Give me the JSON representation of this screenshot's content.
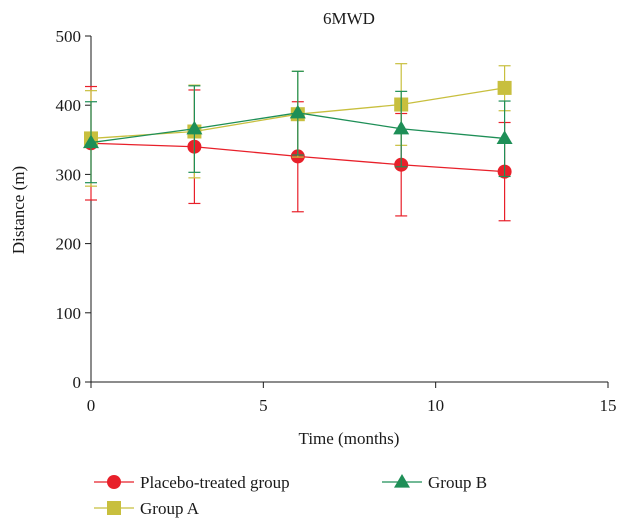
{
  "chart_data": {
    "type": "line",
    "title": "6MWD",
    "xlabel": "Time (months)",
    "ylabel": "Distance (m)",
    "xlim": [
      0,
      15
    ],
    "ylim": [
      0,
      500
    ],
    "xticks": [
      0,
      5,
      10,
      15
    ],
    "yticks": [
      0,
      100,
      200,
      300,
      400,
      500
    ],
    "grid": false,
    "legend_position": "bottom",
    "series": [
      {
        "name": "Placebo-treated group",
        "color": "#e8202a",
        "marker": "circle",
        "x": [
          0,
          3,
          6,
          9,
          12
        ],
        "y": [
          345,
          340,
          326,
          314,
          304
        ],
        "error_low": [
          263,
          258,
          246,
          240,
          233
        ],
        "error_high": [
          427,
          422,
          405,
          388,
          375
        ]
      },
      {
        "name": "Group A",
        "color": "#c8bf3e",
        "marker": "square",
        "x": [
          0,
          3,
          6,
          9,
          12
        ],
        "y": [
          352,
          362,
          387,
          401,
          425
        ],
        "error_low": [
          283,
          295,
          325,
          342,
          392
        ],
        "error_high": [
          421,
          429,
          449,
          460,
          457
        ]
      },
      {
        "name": "Group B",
        "color": "#1e8f57",
        "marker": "triangle",
        "x": [
          0,
          3,
          6,
          9,
          12
        ],
        "y": [
          346,
          366,
          389,
          366,
          352
        ],
        "error_low": [
          288,
          303,
          328,
          311,
          297
        ],
        "error_high": [
          405,
          428,
          449,
          420,
          406
        ]
      }
    ]
  }
}
